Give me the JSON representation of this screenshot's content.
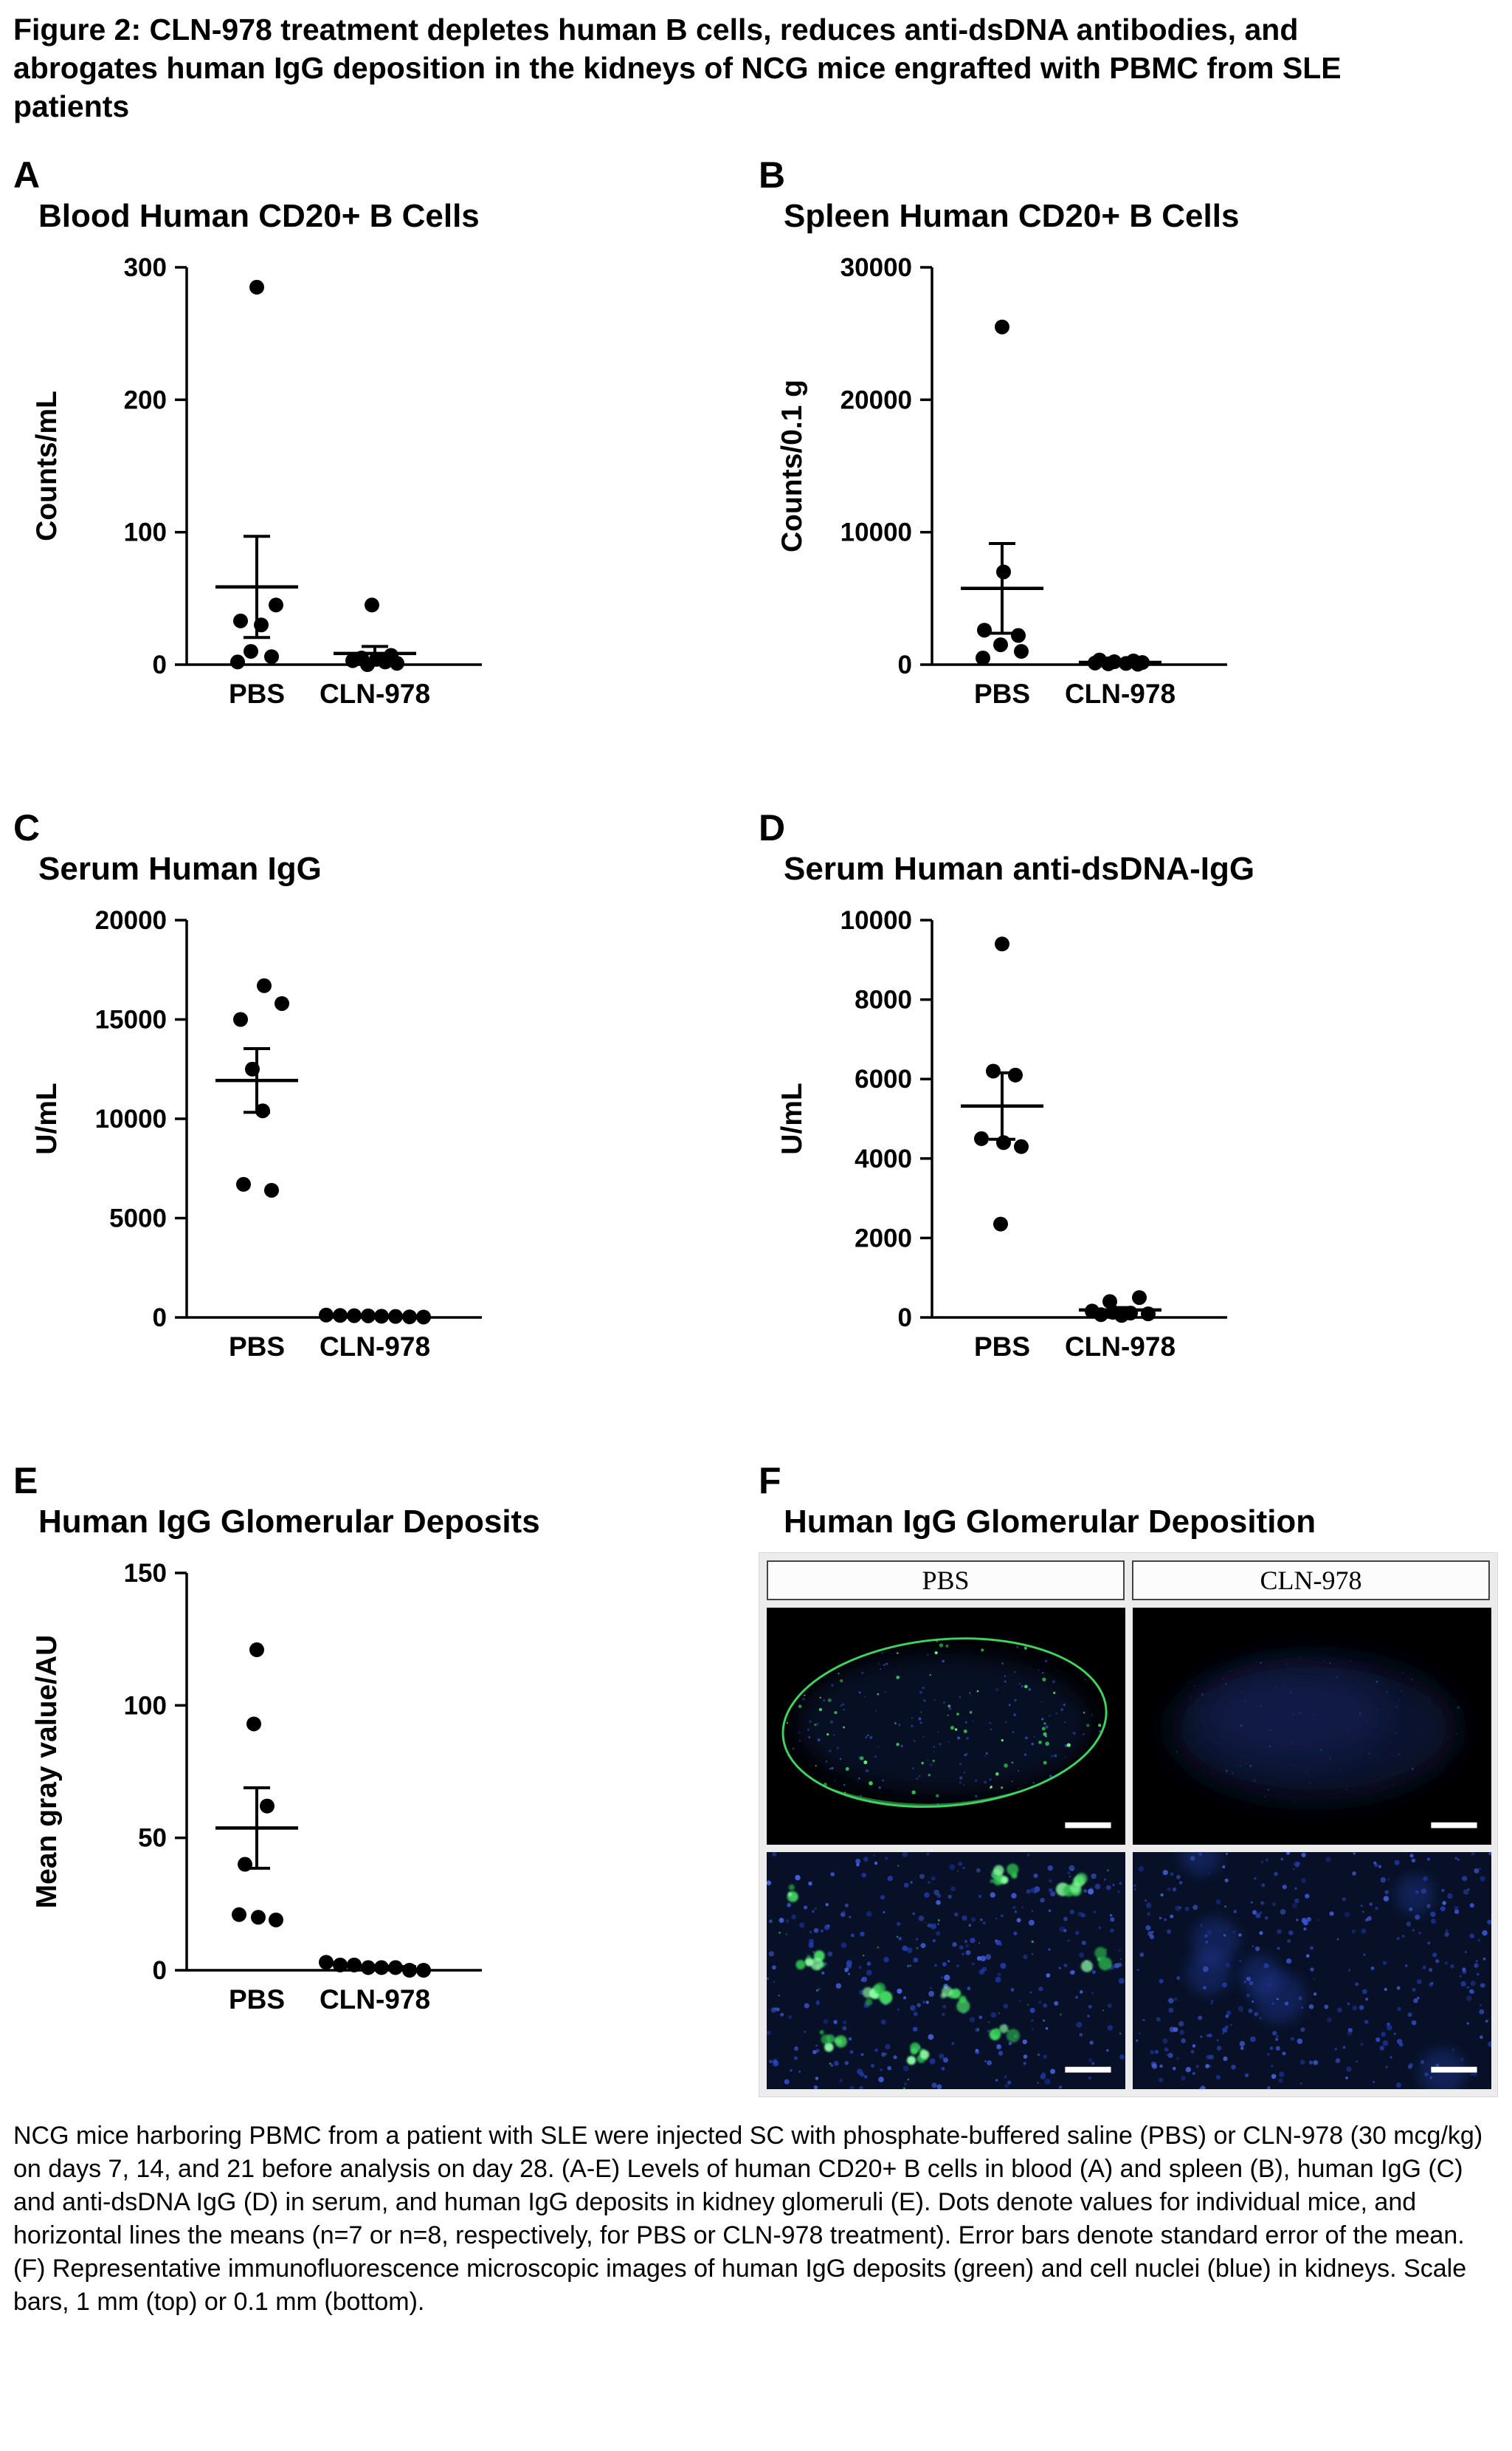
{
  "figure_title": "Figure 2: CLN-978 treatment depletes human B cells, reduces anti-dsDNA antibodies, and abrogates human IgG deposition in the kidneys of NCG mice engrafted with PBMC from SLE patients",
  "caption": "NCG mice harboring PBMC from a patient with SLE were injected SC with phosphate-buffered saline (PBS) or CLN-978 (30 mcg/kg) on days 7, 14, and 21 before analysis on day 28. (A-E) Levels of human CD20+ B cells in blood (A) and spleen (B), human IgG (C) and anti-dsDNA IgG (D) in serum, and human IgG deposits in kidney glomeruli (E). Dots denote values for individual mice, and horizontal lines the means (n=7 or n=8, respectively, for PBS or CLN-978 treatment). Error bars denote standard error of the mean. (F) Representative immunofluorescence microscopic images of human IgG deposits (green) and cell nuclei (blue) in kidneys. Scale bars, 1 mm (top) or 0.1 mm (bottom).",
  "chart_data": [
    {
      "panel": "A",
      "type": "scatter",
      "title": "Blood Human CD20+ B Cells",
      "ylabel": "Counts/mL",
      "ylim": [
        0,
        300
      ],
      "yticks": [
        0,
        100,
        200,
        300
      ],
      "categories": [
        "PBS",
        "CLN-978"
      ],
      "legend_position": "none",
      "grid": false,
      "series": [
        {
          "group": "PBS",
          "n": 7,
          "values": [
            285,
            45,
            33,
            30,
            10,
            6,
            2
          ],
          "dx": [
            0,
            26,
            -22,
            6,
            -8,
            20,
            -26
          ],
          "mean": 58.7,
          "sem": 38.2
        },
        {
          "group": "CLN-978",
          "n": 8,
          "values": [
            45,
            7,
            5,
            4,
            3,
            2,
            1,
            0
          ],
          "dx": [
            -4,
            22,
            -18,
            2,
            -30,
            14,
            30,
            -10
          ],
          "mean": 8.4,
          "sem": 5.3
        }
      ]
    },
    {
      "panel": "B",
      "type": "scatter",
      "title": "Spleen Human CD20+ B Cells",
      "ylabel": "Counts/0.1 g",
      "ylim": [
        0,
        30000
      ],
      "yticks": [
        0,
        10000,
        20000,
        30000
      ],
      "categories": [
        "PBS",
        "CLN-978"
      ],
      "legend_position": "none",
      "grid": false,
      "series": [
        {
          "group": "PBS",
          "n": 7,
          "values": [
            25500,
            7000,
            2600,
            2200,
            1500,
            1000,
            500
          ],
          "dx": [
            0,
            2,
            -24,
            22,
            -2,
            26,
            -26
          ],
          "mean": 5757,
          "sem": 3389
        },
        {
          "group": "CLN-978",
          "n": 8,
          "values": [
            350,
            280,
            220,
            160,
            120,
            90,
            60,
            30
          ],
          "dx": [
            -28,
            18,
            -8,
            30,
            -34,
            8,
            -16,
            24
          ],
          "mean": 164,
          "sem": 39.5
        }
      ]
    },
    {
      "panel": "C",
      "type": "scatter",
      "title": "Serum Human IgG",
      "ylabel": "U/mL",
      "ylim": [
        0,
        20000
      ],
      "yticks": [
        0,
        5000,
        10000,
        15000,
        20000
      ],
      "categories": [
        "PBS",
        "CLN-978"
      ],
      "legend_position": "none",
      "grid": false,
      "series": [
        {
          "group": "PBS",
          "n": 7,
          "values": [
            16700,
            15800,
            15000,
            12500,
            10400,
            6700,
            6400
          ],
          "dx": [
            10,
            34,
            -22,
            -6,
            8,
            -18,
            20
          ],
          "mean": 11929,
          "sem": 1602
        },
        {
          "group": "CLN-978",
          "n": 8,
          "values": [
            120,
            100,
            90,
            80,
            60,
            50,
            30,
            20
          ],
          "dx": [
            -66,
            -47,
            -28,
            -9,
            9,
            28,
            47,
            66
          ],
          "mean": 69,
          "sem": 12.3
        }
      ]
    },
    {
      "panel": "D",
      "type": "scatter",
      "title": "Serum Human anti-dsDNA-IgG",
      "ylabel": "U/mL",
      "ylim": [
        0,
        10000
      ],
      "yticks": [
        0,
        2000,
        4000,
        6000,
        8000,
        10000
      ],
      "categories": [
        "PBS",
        "CLN-978"
      ],
      "legend_position": "none",
      "grid": false,
      "series": [
        {
          "group": "PBS",
          "n": 7,
          "values": [
            9400,
            6200,
            6100,
            4500,
            4400,
            4300,
            2350
          ],
          "dx": [
            0,
            -12,
            18,
            -28,
            2,
            26,
            -2
          ],
          "mean": 5321,
          "sem": 837
        },
        {
          "group": "CLN-978",
          "n": 8,
          "values": [
            500,
            400,
            160,
            130,
            110,
            90,
            70,
            50
          ],
          "dx": [
            26,
            -14,
            -38,
            -10,
            14,
            38,
            -26,
            2
          ],
          "mean": 189,
          "sem": 59
        }
      ]
    },
    {
      "panel": "E",
      "type": "scatter",
      "title": "Human IgG Glomerular Deposits",
      "ylabel": "Mean gray value/AU",
      "ylim": [
        0,
        150
      ],
      "yticks": [
        0,
        50,
        100,
        150
      ],
      "categories": [
        "PBS",
        "CLN-978"
      ],
      "legend_position": "none",
      "grid": false,
      "series": [
        {
          "group": "PBS",
          "n": 7,
          "values": [
            121,
            93,
            62,
            40,
            21,
            20,
            19
          ],
          "dx": [
            0,
            -4,
            14,
            -16,
            -24,
            2,
            26
          ],
          "mean": 53.7,
          "sem": 15.2
        },
        {
          "group": "CLN-978",
          "n": 8,
          "values": [
            3,
            2,
            2,
            1,
            1,
            1,
            0,
            0
          ],
          "dx": [
            -66,
            -47,
            -28,
            -9,
            9,
            28,
            47,
            66
          ],
          "mean": 1.3,
          "sem": 0.4
        }
      ]
    }
  ],
  "panel_f": {
    "panel": "F",
    "title": "Human IgG Glomerular Deposition",
    "column_headers": [
      "PBS",
      "CLN-978"
    ],
    "stain_legend": {
      "igg_deposits": "green",
      "cell_nuclei": "blue"
    },
    "colors": {
      "igg_green": "#3ddf63",
      "nuclei_blue": "#2e4fd4",
      "background": "#000000",
      "tissue_navy": "#071026"
    }
  }
}
